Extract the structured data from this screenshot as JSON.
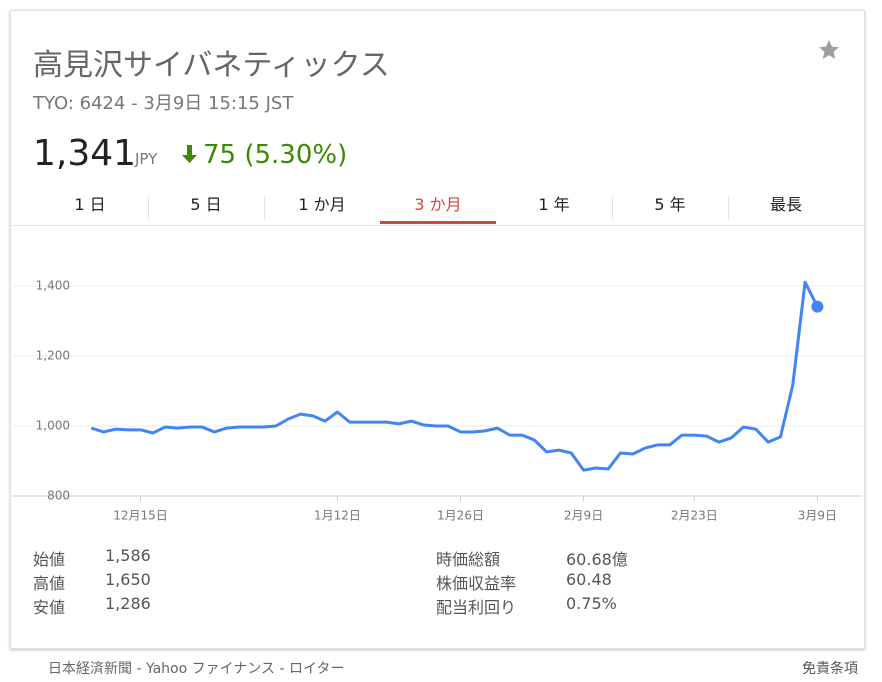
{
  "header": {
    "title": "高見沢サイバネティックス",
    "subtitle": "TYO: 6424 - 3月9日 15:15 JST",
    "price": "1,341",
    "currency": "JPY",
    "change": "75 (5.30%)"
  },
  "tabs": [
    "1 日",
    "5 日",
    "1 か月",
    "3 か月",
    "1 年",
    "5 年",
    "最長"
  ],
  "active_tab": 3,
  "chart_data": {
    "type": "line",
    "x": [
      0,
      1,
      2,
      3,
      4,
      5,
      6,
      7,
      8,
      9,
      10,
      11,
      12,
      13,
      14,
      15,
      16,
      17,
      18,
      19,
      20,
      21,
      22,
      23,
      24,
      25,
      26,
      27,
      28,
      29,
      30,
      31,
      32,
      33,
      34,
      35,
      36,
      37,
      38,
      39,
      40,
      41,
      42,
      43,
      44,
      45,
      46,
      47,
      48,
      49,
      50,
      51,
      52,
      53,
      54,
      55,
      56,
      57,
      58,
      59
    ],
    "series": [
      {
        "name": "高見沢サイバネティックス",
        "color": "#4285f4",
        "values": [
          994,
          983,
          991,
          989,
          989,
          980,
          997,
          994,
          997,
          997,
          983,
          994,
          997,
          997,
          997,
          1000,
          1020,
          1034,
          1029,
          1014,
          1040,
          1011,
          1011,
          1011,
          1011,
          1006,
          1014,
          1003,
          1000,
          1000,
          983,
          983,
          986,
          994,
          974,
          974,
          960,
          926,
          931,
          923,
          874,
          880,
          877,
          923,
          920,
          937,
          946,
          946,
          974,
          974,
          971,
          954,
          966,
          997,
          991,
          954,
          969,
          1117,
          1411,
          1341
        ]
      }
    ],
    "xlim": [
      -1,
      61
    ],
    "xticks": [
      {
        "value": 4,
        "label": "12月15日"
      },
      {
        "value": 20,
        "label": "1月12日"
      },
      {
        "value": 30,
        "label": "1月26日"
      },
      {
        "value": 40,
        "label": "2月9日"
      },
      {
        "value": 49,
        "label": "2月23日"
      },
      {
        "value": 59,
        "label": "3月9日"
      }
    ],
    "ylim": [
      800,
      1450
    ],
    "yticks": [
      800,
      {
        "value": 1000,
        "label": "1,000"
      },
      {
        "value": 1200,
        "label": "1,200"
      },
      {
        "value": 1400,
        "label": "1,400"
      }
    ],
    "grid": true
  },
  "stats": {
    "left": [
      [
        "始値",
        "1,586"
      ],
      [
        "高値",
        "1,650"
      ],
      [
        "安値",
        "1,286"
      ]
    ],
    "right": [
      [
        "時価総額",
        "60.68億"
      ],
      [
        "株価収益率",
        "60.48"
      ],
      [
        "配当利回り",
        "0.75%"
      ]
    ]
  },
  "footer": {
    "sources": "日本経済新聞 - Yahoo ファイナンス - ロイター",
    "disclaimer": "免責条項"
  }
}
